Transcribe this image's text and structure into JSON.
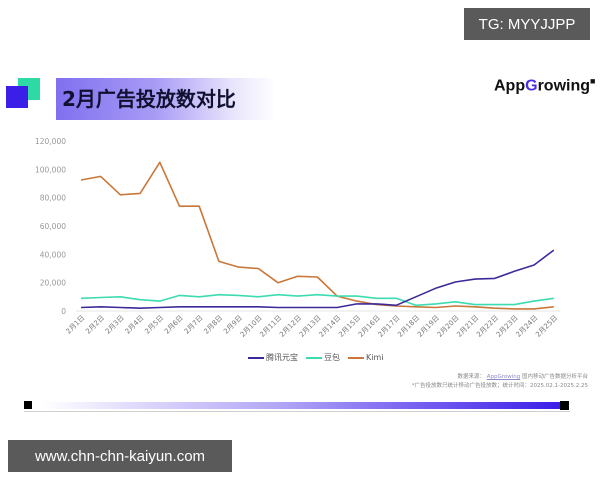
{
  "watermarks": {
    "top": "TG: MYYJJPP",
    "bottom": "www.chn-chn-kaiyun.com"
  },
  "header": {
    "title": "2月广告投放数对比",
    "brand_prefix": "App",
    "brand_g": "G",
    "brand_suffix": "rowing",
    "brand_mark": "■"
  },
  "colors": {
    "tencent": "#3d2a9a",
    "doubao": "#3ddbb0",
    "kimi": "#c9773a",
    "accent_blue": "#3b1ee8",
    "accent_green": "#2fd9a6"
  },
  "footer": {
    "source_label": "数据来源：",
    "source_link": "AppGrowing",
    "source_desc": "国内移动广告数据分析平台",
    "note": "*广告投放数只统计移动广告投放数；统计时间：2025.02.1-2025.2.25"
  },
  "chart_data": {
    "type": "line",
    "title": "2月广告投放数对比",
    "xlabel": "",
    "ylabel": "",
    "ylim": [
      0,
      120000
    ],
    "yticks": [
      "0",
      "20,000",
      "40,000",
      "60,000",
      "80,000",
      "100,000",
      "120,000"
    ],
    "grid": false,
    "legend_position": "bottom",
    "categories": [
      "2月1日",
      "2月2日",
      "2月3日",
      "2月4日",
      "2月5日",
      "2月6日",
      "2月7日",
      "2月8日",
      "2月9日",
      "2月10日",
      "2月11日",
      "2月12日",
      "2月13日",
      "2月14日",
      "2月15日",
      "2月16日",
      "2月17日",
      "2月18日",
      "2月19日",
      "2月20日",
      "2月21日",
      "2月22日",
      "2月23日",
      "2月24日",
      "2月25日"
    ],
    "series": [
      {
        "name": "腾讯元宝",
        "color": "#3d2a9a",
        "values": [
          2500,
          3000,
          2500,
          2000,
          2500,
          3000,
          3000,
          3000,
          3000,
          3000,
          2500,
          2500,
          2500,
          2500,
          5000,
          5000,
          4000,
          10000,
          16000,
          20500,
          22500,
          23000,
          28000,
          32500,
          43000
        ]
      },
      {
        "name": "豆包",
        "color": "#3ddbb0",
        "values": [
          9000,
          9500,
          10000,
          8000,
          7000,
          11000,
          10000,
          11500,
          11000,
          10000,
          11500,
          10500,
          11500,
          10500,
          10500,
          9000,
          9000,
          4000,
          5000,
          6500,
          4500,
          4500,
          4500,
          7000,
          9000
        ]
      },
      {
        "name": "Kimi",
        "color": "#c9773a",
        "values": [
          92500,
          95000,
          82000,
          83000,
          105000,
          74000,
          74000,
          35000,
          31000,
          30000,
          20000,
          24500,
          24000,
          10500,
          7000,
          4500,
          3500,
          3000,
          2500,
          3500,
          3000,
          2000,
          1500,
          1500,
          3000
        ]
      }
    ]
  }
}
